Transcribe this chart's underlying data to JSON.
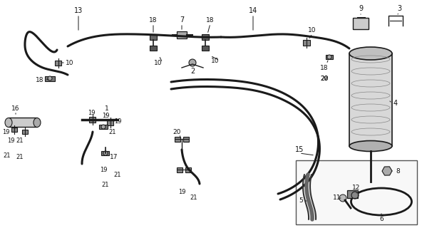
{
  "bg_color": "#ffffff",
  "line_color": "#1a1a1a",
  "label_color": "#111111",
  "hose_lw": 2.2,
  "fig_w": 5.92,
  "fig_h": 3.2,
  "dpi": 100
}
